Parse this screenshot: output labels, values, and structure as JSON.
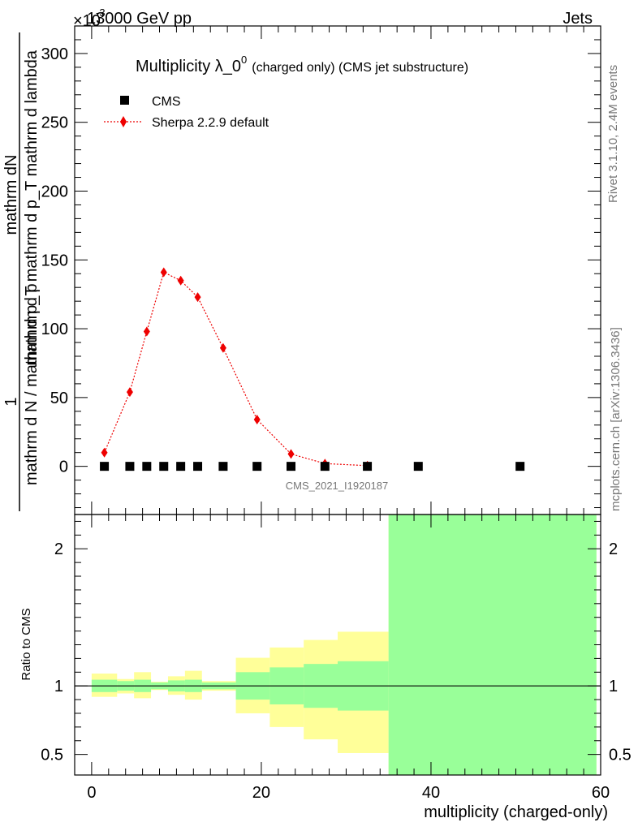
{
  "header": {
    "energy": "13000 GeV pp",
    "process": "Jets",
    "exponent_label": "×10",
    "exponent_power": "-3"
  },
  "side_labels": {
    "rivet": "Rivet 3.1.10,  2.4M events",
    "mcplots": "mcplots.cern.ch [arXiv:1306.3436]"
  },
  "chart_data": [
    {
      "type": "scatter",
      "title": "Multiplicity λ_0",
      "title_sup": "0",
      "title_suffix": "(charged only) (CMS jet substructure)",
      "analysis_id": "CMS_2021_I1920187",
      "ylabel_top": "1",
      "ylabel_top2": "mathrm dN",
      "ylabel_top3": "mathrm d p",
      "ylabel_bottom": "mathrm d N / mathrm d p_T mathrm d p_T mathrm d lambda",
      "ylim": [
        -35,
        320
      ],
      "xlim": [
        -2,
        60
      ],
      "y_ticks": [
        0,
        50,
        100,
        150,
        200,
        250,
        300
      ],
      "y_tick_labels": [
        "0",
        "50",
        "100",
        "150",
        "200",
        "250",
        "300"
      ],
      "legend_placement": "top-left",
      "series": [
        {
          "name": "CMS",
          "color": "#000000",
          "marker": "square",
          "x": [
            1.5,
            4.5,
            6.5,
            8.5,
            10.5,
            12.5,
            15.5,
            19.5,
            23.5,
            27.5,
            32.5,
            38.5,
            50.5
          ],
          "y": [
            0,
            0,
            0,
            0,
            0,
            0,
            0,
            0,
            0,
            0,
            0,
            0,
            0
          ]
        },
        {
          "name": "Sherpa 2.2.9 default",
          "color": "#ee0000",
          "marker": "diamond",
          "line": "dotted",
          "x": [
            1.5,
            4.5,
            6.5,
            8.5,
            10.5,
            12.5,
            15.5,
            19.5,
            23.5,
            27.5,
            32.5
          ],
          "y": [
            10,
            54,
            98,
            141,
            135,
            123,
            86,
            34,
            9,
            2,
            0.5
          ]
        }
      ]
    },
    {
      "type": "area",
      "ylabel": "Ratio to CMS",
      "xlabel": "multiplicity (charged-only)",
      "xlim": [
        -2,
        60
      ],
      "ylim": [
        0.35,
        2.25
      ],
      "y_ticks": [
        0.5,
        1,
        2
      ],
      "y_tick_labels": [
        "0.5",
        "1",
        "2"
      ],
      "x_ticks": [
        0,
        20,
        40,
        60
      ],
      "x_tick_labels": [
        "0",
        "20",
        "40",
        "60"
      ],
      "reference_line": 1,
      "bands": {
        "bins": [
          [
            0,
            3
          ],
          [
            3,
            5
          ],
          [
            5,
            7
          ],
          [
            7,
            9
          ],
          [
            9,
            11
          ],
          [
            11,
            13
          ],
          [
            13,
            17
          ],
          [
            17,
            21
          ],
          [
            21,
            25
          ],
          [
            25,
            29
          ],
          [
            29,
            35
          ],
          [
            35,
            59.5
          ]
        ],
        "stat_color": "#99ff99",
        "total_color": "#ffff99",
        "stat_low": [
          0.955,
          0.965,
          0.955,
          0.975,
          0.96,
          0.955,
          0.975,
          0.9,
          0.865,
          0.84,
          0.82,
          0.35
        ],
        "stat_high": [
          1.045,
          1.035,
          1.045,
          1.025,
          1.04,
          1.045,
          1.025,
          1.1,
          1.135,
          1.16,
          1.18,
          2.25
        ],
        "total_low": [
          0.92,
          0.945,
          0.91,
          0.97,
          0.935,
          0.9,
          0.965,
          0.8,
          0.7,
          0.61,
          0.51,
          0.35
        ],
        "total_high": [
          1.09,
          1.05,
          1.1,
          1.03,
          1.07,
          1.11,
          1.035,
          1.205,
          1.28,
          1.335,
          1.395,
          2.25
        ]
      }
    }
  ]
}
